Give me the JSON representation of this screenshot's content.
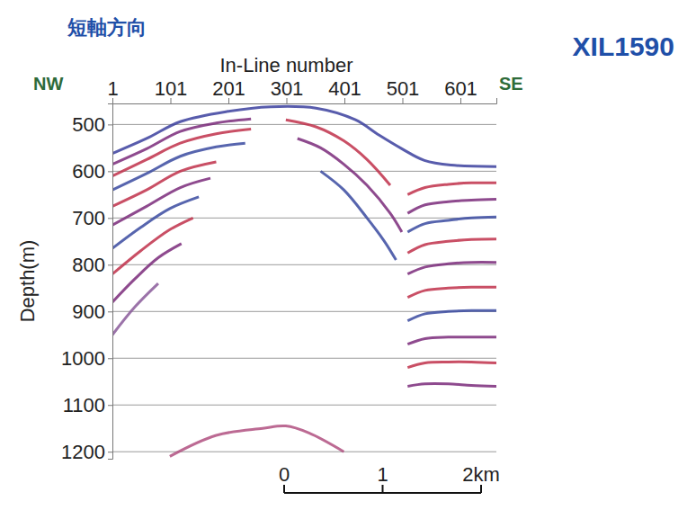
{
  "chart_data": {
    "type": "line",
    "title": "短軸方向",
    "subtitle": "XIL1590",
    "x_label": "In-Line number",
    "y_label": "Depth(m)",
    "left_label": "NW",
    "right_label": "SE",
    "xlim": [
      1,
      663
    ],
    "xticks": [
      1,
      101,
      201,
      301,
      401,
      501,
      601
    ],
    "ylim": [
      455,
      1215
    ],
    "yticks": [
      500,
      600,
      700,
      800,
      900,
      1000,
      1100,
      1200
    ],
    "grid": true,
    "scale_bar": {
      "values": [
        0,
        1,
        2
      ],
      "labels": [
        "0",
        "1",
        "2km"
      ]
    },
    "series": [
      {
        "color": "#3b3f9e",
        "x": [
          1,
          60,
          118,
          200,
          274,
          352,
          420,
          461,
          500,
          539,
          585,
          663
        ],
        "values": [
          562,
          530,
          494,
          472,
          462,
          465,
          490,
          523,
          552,
          577,
          587,
          590
        ]
      },
      {
        "color": "#7a2a7a",
        "x": [
          1,
          60,
          118,
          180,
          240
        ],
        "values": [
          585,
          552,
          515,
          497,
          488
        ]
      },
      {
        "color": "#c0304a",
        "x": [
          1,
          60,
          118,
          180,
          240
        ],
        "values": [
          610,
          575,
          540,
          520,
          510
        ]
      },
      {
        "color": "#3a4aa0",
        "x": [
          1,
          60,
          118,
          180,
          230
        ],
        "values": [
          640,
          605,
          568,
          548,
          540
        ]
      },
      {
        "color": "#c0304a",
        "x": [
          1,
          60,
          118,
          180
        ],
        "values": [
          675,
          640,
          600,
          580
        ]
      },
      {
        "color": "#7a2a7a",
        "x": [
          1,
          60,
          118,
          170
        ],
        "values": [
          715,
          675,
          635,
          615
        ]
      },
      {
        "color": "#3a4aa0",
        "x": [
          1,
          50,
          100,
          150
        ],
        "values": [
          765,
          720,
          680,
          655
        ]
      },
      {
        "color": "#c0304a",
        "x": [
          1,
          50,
          100,
          140
        ],
        "values": [
          820,
          770,
          725,
          700
        ]
      },
      {
        "color": "#7a2a7a",
        "x": [
          1,
          40,
          80,
          120
        ],
        "values": [
          880,
          830,
          785,
          755
        ]
      },
      {
        "color": "#8a5a9a",
        "x": [
          1,
          40,
          80
        ],
        "values": [
          950,
          890,
          840
        ]
      },
      {
        "color": "#c0304a",
        "x": [
          300,
          352,
          400,
          440,
          480
        ],
        "values": [
          490,
          505,
          535,
          575,
          630
        ]
      },
      {
        "color": "#7a2a7a",
        "x": [
          320,
          360,
          400,
          440,
          480,
          500
        ],
        "values": [
          530,
          550,
          585,
          630,
          690,
          730
        ]
      },
      {
        "color": "#3a4aa0",
        "x": [
          360,
          400,
          440,
          470,
          490
        ],
        "values": [
          600,
          640,
          700,
          750,
          790
        ]
      },
      {
        "color": "#c0304a",
        "x": [
          510,
          540,
          580,
          620,
          663
        ],
        "values": [
          650,
          635,
          628,
          625,
          625
        ]
      },
      {
        "color": "#7a2a7a",
        "x": [
          510,
          540,
          580,
          620,
          663
        ],
        "values": [
          690,
          672,
          665,
          662,
          660
        ]
      },
      {
        "color": "#3a4aa0",
        "x": [
          510,
          540,
          580,
          620,
          663
        ],
        "values": [
          730,
          712,
          705,
          700,
          698
        ]
      },
      {
        "color": "#c0304a",
        "x": [
          510,
          540,
          580,
          620,
          663
        ],
        "values": [
          775,
          757,
          750,
          746,
          745
        ]
      },
      {
        "color": "#7a2a7a",
        "x": [
          510,
          540,
          580,
          620,
          663
        ],
        "values": [
          820,
          805,
          798,
          795,
          795
        ]
      },
      {
        "color": "#c0304a",
        "x": [
          510,
          540,
          580,
          620,
          663
        ],
        "values": [
          870,
          855,
          850,
          848,
          848
        ]
      },
      {
        "color": "#3a4aa0",
        "x": [
          510,
          540,
          580,
          620,
          663
        ],
        "values": [
          920,
          905,
          900,
          898,
          898
        ]
      },
      {
        "color": "#7a2a7a",
        "x": [
          510,
          540,
          580,
          620,
          663
        ],
        "values": [
          970,
          958,
          955,
          955,
          955
        ]
      },
      {
        "color": "#c0304a",
        "x": [
          510,
          540,
          580,
          620,
          663
        ],
        "values": [
          1020,
          1010,
          1008,
          1008,
          1010
        ]
      },
      {
        "color": "#7a2a7a",
        "x": [
          510,
          540,
          580,
          620,
          663
        ],
        "values": [
          1060,
          1055,
          1055,
          1058,
          1060
        ]
      },
      {
        "color": "#b05080",
        "x": [
          100,
          180,
          260,
          300,
          340,
          400
        ],
        "values": [
          1210,
          1165,
          1150,
          1145,
          1160,
          1200
        ]
      }
    ]
  }
}
